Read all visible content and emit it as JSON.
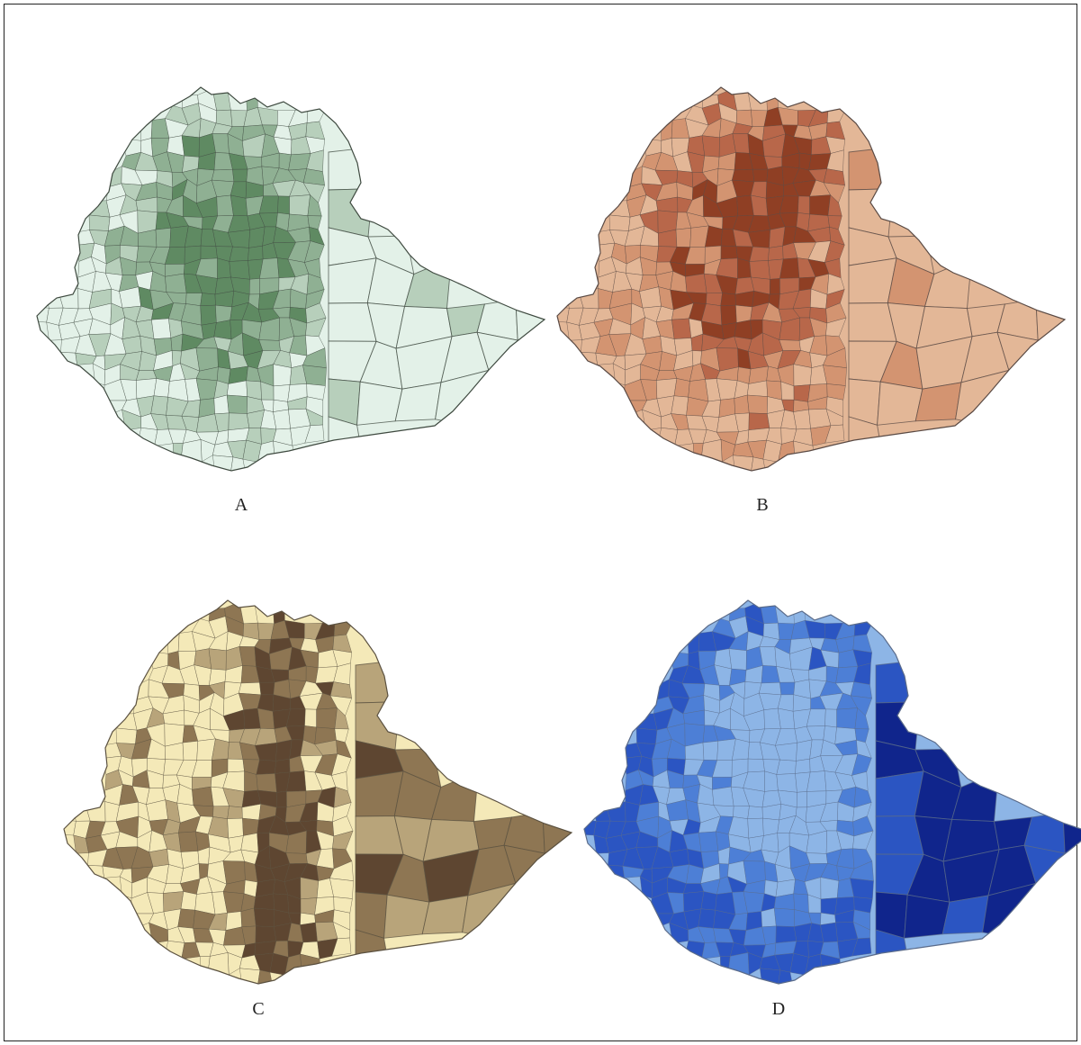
{
  "figure": {
    "panels": [
      {
        "label": "A",
        "scheme": "green",
        "colors": {
          "light": "#e3f1e8",
          "mid1": "#b7cfbb",
          "mid2": "#8fb093",
          "dark": "#5f8a62"
        },
        "border_color": "#3f4a40"
      },
      {
        "label": "B",
        "scheme": "brown",
        "colors": {
          "light": "#e3b797",
          "mid1": "#d39471",
          "mid2": "#b8674a",
          "dark": "#8f3f24"
        },
        "border_color": "#5a4a44"
      },
      {
        "label": "C",
        "scheme": "tan",
        "colors": {
          "light": "#f4e9b8",
          "mid1": "#b8a47a",
          "mid2": "#8e7653",
          "dark": "#5e4631"
        },
        "border_color": "#5b5140"
      },
      {
        "label": "D",
        "scheme": "blue",
        "colors": {
          "light": "#8db5e6",
          "mid1": "#4d7fd6",
          "mid2": "#2b55c2",
          "dark": "#10258c"
        },
        "border_color": "#5a6b8a"
      }
    ]
  }
}
